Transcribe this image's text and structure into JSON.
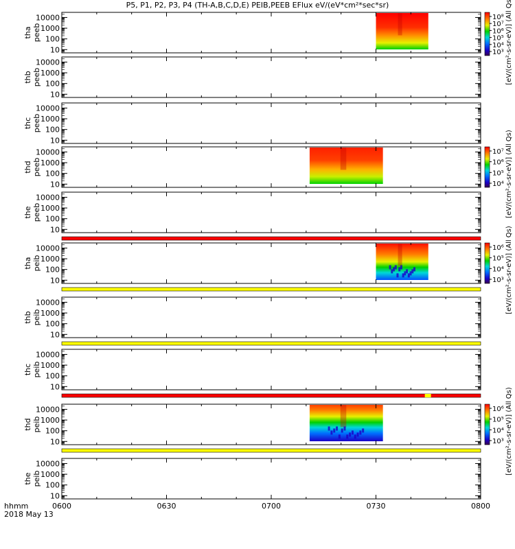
{
  "title": "P5, P1, P2, P3, P4 (TH-A,B,C,D,E) PEIB,PEEB EFlux eV/(eV*cm²*sec*sr)",
  "chart_data": {
    "type": "heatmap",
    "x_axis": {
      "ticks": [
        "0600",
        "0630",
        "0700",
        "0730",
        "0800"
      ],
      "range": [
        "06:00",
        "08:00"
      ],
      "label_line1": "hhmm",
      "label_line2": "2018 May 13"
    },
    "y_axis": {
      "scale": "log",
      "range": [
        5,
        30000
      ],
      "ticks": [
        "10",
        "100",
        "1000",
        "10000"
      ]
    },
    "panels": [
      {
        "probe": "tha",
        "species": "peeb",
        "data": {
          "start": "07:30",
          "end": "07:45"
        }
      },
      {
        "probe": "thb",
        "species": "peeb",
        "data": null
      },
      {
        "probe": "thc",
        "species": "peeb",
        "data": null
      },
      {
        "probe": "thd",
        "species": "peeb",
        "data": {
          "start": "07:11",
          "end": "07:32"
        }
      },
      {
        "probe": "the",
        "species": "peeb",
        "data": null
      },
      {
        "probe": "tha",
        "species": "peib",
        "data": {
          "start": "07:30",
          "end": "07:45"
        }
      },
      {
        "probe": "thb",
        "species": "peib",
        "data": null
      },
      {
        "probe": "thc",
        "species": "peib",
        "data": null
      },
      {
        "probe": "thd",
        "species": "peib",
        "data": {
          "start": "07:11",
          "end": "07:32"
        }
      },
      {
        "probe": "the",
        "species": "peib",
        "data": null
      }
    ],
    "colorbars": [
      {
        "panel": 0,
        "ticks": [
          "10⁸",
          "10⁷",
          "10⁶",
          "10⁵",
          "10⁴",
          "10³"
        ],
        "label": "[eV/(cm²-s-sr-eV)] (All Qs)"
      },
      {
        "panel": 3,
        "ticks": [
          "10⁷",
          "10⁶",
          "10⁵",
          "10⁴"
        ],
        "label": "[eV/(cm²-s-sr-eV)] (All Qs)"
      },
      {
        "panel": 5,
        "ticks": [
          "10⁶",
          "10⁵",
          "10⁴",
          "10³"
        ],
        "label": "[eV/(cm²-s-sr-eV)] (All Qs)"
      },
      {
        "panel": 8,
        "ticks": [
          "10⁶",
          "10⁵",
          "10⁴",
          "10³"
        ],
        "label": "[eV/(cm²-s-sr-eV)] (All Qs)"
      }
    ],
    "status_bars": [
      {
        "after_panel": 4,
        "color": "#ff0000"
      },
      {
        "after_panel": 5,
        "color": "#ffff00"
      },
      {
        "after_panel": 6,
        "color": "#ffff00"
      },
      {
        "after_panel": 7,
        "color": "#ff0000",
        "flag_at": "07:44"
      },
      {
        "after_panel": 8,
        "color": "#ffff00"
      }
    ]
  }
}
